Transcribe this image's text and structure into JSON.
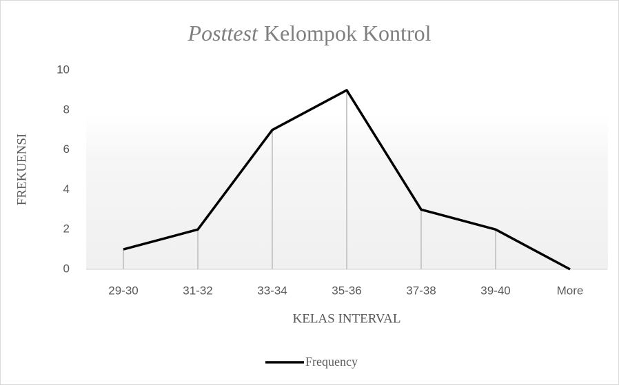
{
  "chart_data": {
    "type": "line",
    "title": [
      "Posttest",
      "Kelompok Kontrol"
    ],
    "x_label": "KELAS INTERVAL",
    "y_label": "FREKUENSI",
    "categories": [
      "29-30",
      "31-32",
      "33-34",
      "35-36",
      "37-38",
      "39-40",
      "More"
    ],
    "series": [
      {
        "name": "Frequency",
        "color": "#000000",
        "values": [
          1,
          2,
          7,
          9,
          3,
          2,
          0
        ]
      }
    ],
    "ylim": [
      0,
      10
    ],
    "yticks": [
      0,
      2,
      4,
      6,
      8,
      10
    ],
    "drop_lines": true,
    "grid": false,
    "legend": "bottom"
  }
}
